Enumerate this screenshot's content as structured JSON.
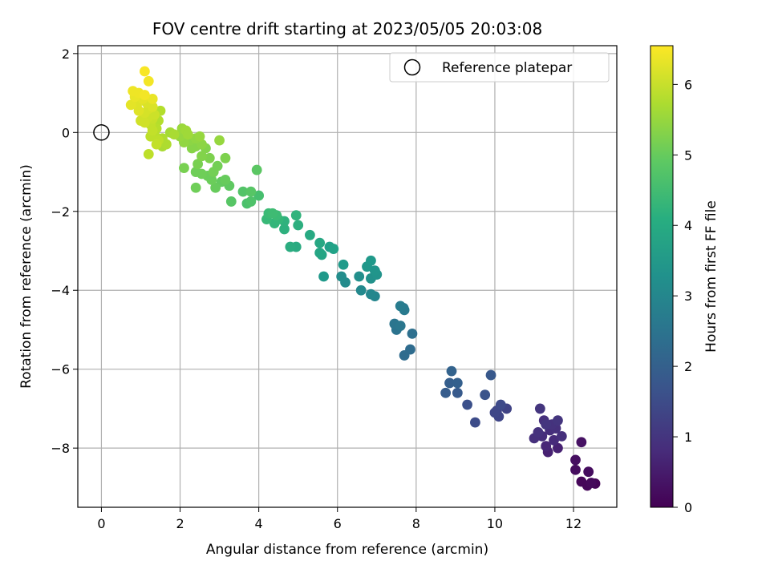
{
  "chart_data": {
    "type": "scatter",
    "title": "FOV centre drift starting at 2023/05/05 20:03:08",
    "xlabel": "Angular distance from reference (arcmin)",
    "ylabel": "Rotation from reference (arcmin)",
    "xlim": [
      -0.6,
      13.1
    ],
    "ylim": [
      -9.5,
      2.2
    ],
    "x_ticks": [
      0,
      2,
      4,
      6,
      8,
      10,
      12
    ],
    "y_ticks": [
      2,
      0,
      -2,
      -4,
      -6,
      -8
    ],
    "grid": true,
    "legend": {
      "position": "top-right",
      "entries": [
        "Reference platepar"
      ]
    },
    "reference_point": {
      "x": 0,
      "y": 0
    },
    "colorbar": {
      "label": "Hours from first FF file",
      "range": [
        0,
        6.55
      ],
      "ticks": [
        0,
        1,
        2,
        3,
        4,
        5,
        6
      ],
      "colormap": "viridis"
    },
    "points": [
      {
        "x": 12.55,
        "y": -8.9,
        "h": 0.05
      },
      {
        "x": 12.35,
        "y": -8.95,
        "h": 0.1
      },
      {
        "x": 12.45,
        "y": -8.88,
        "h": 0.15
      },
      {
        "x": 12.2,
        "y": -8.85,
        "h": 0.1
      },
      {
        "x": 12.38,
        "y": -8.6,
        "h": 0.2
      },
      {
        "x": 12.05,
        "y": -8.55,
        "h": 0.2
      },
      {
        "x": 12.05,
        "y": -8.3,
        "h": 0.25
      },
      {
        "x": 12.2,
        "y": -7.85,
        "h": 0.3
      },
      {
        "x": 11.6,
        "y": -8.0,
        "h": 0.6
      },
      {
        "x": 11.35,
        "y": -8.1,
        "h": 0.6
      },
      {
        "x": 11.3,
        "y": -7.95,
        "h": 0.7
      },
      {
        "x": 11.5,
        "y": -7.8,
        "h": 0.8
      },
      {
        "x": 11.7,
        "y": -7.7,
        "h": 0.9
      },
      {
        "x": 11.55,
        "y": -7.5,
        "h": 0.9
      },
      {
        "x": 11.4,
        "y": -7.55,
        "h": 0.85
      },
      {
        "x": 11.2,
        "y": -7.7,
        "h": 0.85
      },
      {
        "x": 11.0,
        "y": -7.75,
        "h": 0.9
      },
      {
        "x": 11.25,
        "y": -7.3,
        "h": 0.9
      },
      {
        "x": 11.3,
        "y": -7.4,
        "h": 1.0
      },
      {
        "x": 11.6,
        "y": -7.3,
        "h": 1.0
      },
      {
        "x": 11.15,
        "y": -7.0,
        "h": 1.0
      },
      {
        "x": 11.1,
        "y": -7.6,
        "h": 0.95
      },
      {
        "x": 11.45,
        "y": -7.4,
        "h": 0.95
      },
      {
        "x": 10.3,
        "y": -7.0,
        "h": 1.3
      },
      {
        "x": 10.1,
        "y": -7.2,
        "h": 1.35
      },
      {
        "x": 10.0,
        "y": -7.1,
        "h": 1.4
      },
      {
        "x": 10.15,
        "y": -6.9,
        "h": 1.45
      },
      {
        "x": 10.05,
        "y": -7.05,
        "h": 1.35
      },
      {
        "x": 9.5,
        "y": -7.35,
        "h": 1.5
      },
      {
        "x": 9.3,
        "y": -6.9,
        "h": 1.6
      },
      {
        "x": 9.75,
        "y": -6.65,
        "h": 1.7
      },
      {
        "x": 9.9,
        "y": -6.15,
        "h": 1.8
      },
      {
        "x": 9.05,
        "y": -6.6,
        "h": 1.85
      },
      {
        "x": 8.75,
        "y": -6.6,
        "h": 1.9
      },
      {
        "x": 8.85,
        "y": -6.35,
        "h": 1.95
      },
      {
        "x": 9.05,
        "y": -6.35,
        "h": 2.0
      },
      {
        "x": 8.9,
        "y": -6.05,
        "h": 2.05
      },
      {
        "x": 7.85,
        "y": -5.5,
        "h": 2.3
      },
      {
        "x": 7.7,
        "y": -5.65,
        "h": 2.3
      },
      {
        "x": 7.9,
        "y": -5.1,
        "h": 2.4
      },
      {
        "x": 7.5,
        "y": -5.0,
        "h": 2.5
      },
      {
        "x": 7.45,
        "y": -4.85,
        "h": 2.55
      },
      {
        "x": 7.6,
        "y": -4.9,
        "h": 2.6
      },
      {
        "x": 7.7,
        "y": -4.5,
        "h": 2.7
      },
      {
        "x": 7.6,
        "y": -4.4,
        "h": 2.75
      },
      {
        "x": 7.68,
        "y": -4.45,
        "h": 2.65
      },
      {
        "x": 6.95,
        "y": -4.15,
        "h": 3.0
      },
      {
        "x": 6.85,
        "y": -4.1,
        "h": 3.05
      },
      {
        "x": 6.6,
        "y": -4.0,
        "h": 3.1
      },
      {
        "x": 6.2,
        "y": -3.8,
        "h": 3.15
      },
      {
        "x": 6.1,
        "y": -3.65,
        "h": 3.2
      },
      {
        "x": 6.55,
        "y": -3.65,
        "h": 3.25
      },
      {
        "x": 6.85,
        "y": -3.7,
        "h": 3.3
      },
      {
        "x": 7.0,
        "y": -3.6,
        "h": 3.35
      },
      {
        "x": 6.95,
        "y": -3.5,
        "h": 3.4
      },
      {
        "x": 6.75,
        "y": -3.4,
        "h": 3.45
      },
      {
        "x": 6.85,
        "y": -3.25,
        "h": 3.5
      },
      {
        "x": 6.15,
        "y": -3.35,
        "h": 3.55
      },
      {
        "x": 5.65,
        "y": -3.65,
        "h": 3.5
      },
      {
        "x": 5.8,
        "y": -2.9,
        "h": 3.7
      },
      {
        "x": 5.9,
        "y": -2.95,
        "h": 3.75
      },
      {
        "x": 5.6,
        "y": -3.1,
        "h": 3.8
      },
      {
        "x": 5.55,
        "y": -3.05,
        "h": 3.85
      },
      {
        "x": 5.55,
        "y": -2.8,
        "h": 3.9
      },
      {
        "x": 5.3,
        "y": -2.6,
        "h": 3.95
      },
      {
        "x": 4.95,
        "y": -2.9,
        "h": 4.0
      },
      {
        "x": 4.8,
        "y": -2.9,
        "h": 4.05
      },
      {
        "x": 5.0,
        "y": -2.35,
        "h": 4.1
      },
      {
        "x": 4.65,
        "y": -2.45,
        "h": 4.15
      },
      {
        "x": 4.65,
        "y": -2.25,
        "h": 4.2
      },
      {
        "x": 4.95,
        "y": -2.1,
        "h": 4.25
      },
      {
        "x": 4.4,
        "y": -2.3,
        "h": 4.3
      },
      {
        "x": 4.5,
        "y": -2.2,
        "h": 4.35
      },
      {
        "x": 4.2,
        "y": -2.2,
        "h": 4.4
      },
      {
        "x": 4.25,
        "y": -2.05,
        "h": 4.45
      },
      {
        "x": 4.45,
        "y": -2.1,
        "h": 4.45
      },
      {
        "x": 4.35,
        "y": -2.05,
        "h": 4.5
      },
      {
        "x": 4.0,
        "y": -1.6,
        "h": 4.6
      },
      {
        "x": 3.7,
        "y": -1.8,
        "h": 4.65
      },
      {
        "x": 3.8,
        "y": -1.75,
        "h": 4.7
      },
      {
        "x": 3.6,
        "y": -1.5,
        "h": 4.75
      },
      {
        "x": 3.8,
        "y": -1.5,
        "h": 4.8
      },
      {
        "x": 3.3,
        "y": -1.75,
        "h": 4.8
      },
      {
        "x": 3.95,
        "y": -0.95,
        "h": 4.85
      },
      {
        "x": 3.25,
        "y": -1.35,
        "h": 4.9
      },
      {
        "x": 3.05,
        "y": -1.25,
        "h": 4.95
      },
      {
        "x": 3.15,
        "y": -1.2,
        "h": 5.0
      },
      {
        "x": 2.9,
        "y": -1.4,
        "h": 5.0
      },
      {
        "x": 2.8,
        "y": -1.2,
        "h": 5.05
      },
      {
        "x": 2.7,
        "y": -1.1,
        "h": 5.05
      },
      {
        "x": 2.55,
        "y": -1.05,
        "h": 5.1
      },
      {
        "x": 2.4,
        "y": -1.0,
        "h": 5.1
      },
      {
        "x": 2.4,
        "y": -1.4,
        "h": 5.1
      },
      {
        "x": 2.85,
        "y": -1.0,
        "h": 5.15
      },
      {
        "x": 2.95,
        "y": -0.85,
        "h": 5.15
      },
      {
        "x": 2.45,
        "y": -0.8,
        "h": 5.2
      },
      {
        "x": 2.1,
        "y": -0.9,
        "h": 5.2
      },
      {
        "x": 3.15,
        "y": -0.65,
        "h": 5.25
      },
      {
        "x": 2.75,
        "y": -0.65,
        "h": 5.25
      },
      {
        "x": 2.55,
        "y": -0.6,
        "h": 5.3
      },
      {
        "x": 2.65,
        "y": -0.4,
        "h": 5.3
      },
      {
        "x": 2.4,
        "y": -0.35,
        "h": 5.35
      },
      {
        "x": 2.3,
        "y": -0.4,
        "h": 5.35
      },
      {
        "x": 2.55,
        "y": -0.3,
        "h": 5.4
      },
      {
        "x": 2.25,
        "y": -0.2,
        "h": 5.4
      },
      {
        "x": 2.4,
        "y": -0.15,
        "h": 5.45
      },
      {
        "x": 2.1,
        "y": -0.25,
        "h": 5.45
      },
      {
        "x": 2.5,
        "y": -0.1,
        "h": 5.5
      },
      {
        "x": 2.0,
        "y": -0.1,
        "h": 5.5
      },
      {
        "x": 2.05,
        "y": 0.1,
        "h": 5.55
      },
      {
        "x": 2.15,
        "y": 0.05,
        "h": 5.6
      },
      {
        "x": 2.2,
        "y": -0.05,
        "h": 5.6
      },
      {
        "x": 3.0,
        "y": -0.2,
        "h": 5.5
      },
      {
        "x": 1.75,
        "y": 0.0,
        "h": 5.65
      },
      {
        "x": 1.85,
        "y": -0.05,
        "h": 5.7
      },
      {
        "x": 1.55,
        "y": -0.35,
        "h": 5.7
      },
      {
        "x": 1.65,
        "y": -0.3,
        "h": 5.75
      },
      {
        "x": 1.55,
        "y": -0.15,
        "h": 5.75
      },
      {
        "x": 1.5,
        "y": 0.55,
        "h": 5.8
      },
      {
        "x": 1.45,
        "y": 0.3,
        "h": 5.8
      },
      {
        "x": 1.4,
        "y": 0.1,
        "h": 5.85
      },
      {
        "x": 1.35,
        "y": -0.05,
        "h": 5.85
      },
      {
        "x": 1.25,
        "y": -0.1,
        "h": 5.9
      },
      {
        "x": 1.2,
        "y": -0.55,
        "h": 5.9
      },
      {
        "x": 1.45,
        "y": -0.2,
        "h": 5.9
      },
      {
        "x": 1.3,
        "y": 0.05,
        "h": 5.95
      },
      {
        "x": 1.25,
        "y": 0.2,
        "h": 5.95
      },
      {
        "x": 1.4,
        "y": -0.3,
        "h": 5.95
      },
      {
        "x": 1.3,
        "y": 0.35,
        "h": 6.0
      },
      {
        "x": 1.2,
        "y": 0.4,
        "h": 6.05
      },
      {
        "x": 1.35,
        "y": 0.45,
        "h": 6.05
      },
      {
        "x": 1.1,
        "y": 0.25,
        "h": 6.1
      },
      {
        "x": 1.0,
        "y": 0.3,
        "h": 6.1
      },
      {
        "x": 1.1,
        "y": 0.5,
        "h": 6.15
      },
      {
        "x": 1.2,
        "y": 0.6,
        "h": 6.15
      },
      {
        "x": 1.3,
        "y": 0.65,
        "h": 6.2
      },
      {
        "x": 1.15,
        "y": 0.75,
        "h": 6.2
      },
      {
        "x": 0.95,
        "y": 0.55,
        "h": 6.25
      },
      {
        "x": 0.9,
        "y": 0.7,
        "h": 6.25
      },
      {
        "x": 0.75,
        "y": 0.7,
        "h": 6.3
      },
      {
        "x": 1.05,
        "y": 0.85,
        "h": 6.3
      },
      {
        "x": 1.3,
        "y": 0.85,
        "h": 6.35
      },
      {
        "x": 0.85,
        "y": 0.9,
        "h": 6.35
      },
      {
        "x": 0.95,
        "y": 1.0,
        "h": 6.4
      },
      {
        "x": 0.8,
        "y": 1.05,
        "h": 6.4
      },
      {
        "x": 1.1,
        "y": 0.95,
        "h": 6.45
      },
      {
        "x": 1.2,
        "y": 1.3,
        "h": 6.45
      },
      {
        "x": 1.1,
        "y": 1.55,
        "h": 6.5
      }
    ]
  }
}
